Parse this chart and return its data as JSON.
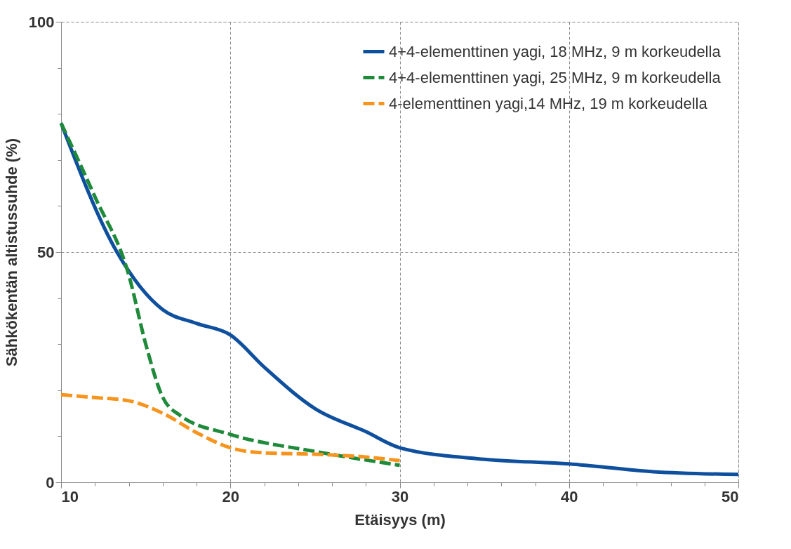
{
  "chart_data": {
    "type": "line",
    "xlabel": "Etäisyys (m)",
    "ylabel": "Sähkökentän altistussuhde (%)",
    "xlim": [
      10,
      50
    ],
    "ylim": [
      0,
      100
    ],
    "xticks": [
      10,
      {
        "value": 12,
        "label": null
      },
      {
        "value": 14,
        "label": null
      },
      {
        "value": 16,
        "label": null
      },
      {
        "value": 18,
        "label": null
      },
      20,
      {
        "value": 22,
        "label": null
      },
      {
        "value": 24,
        "label": null
      },
      {
        "value": 26,
        "label": null
      },
      {
        "value": 28,
        "label": null
      },
      30,
      {
        "value": 32,
        "label": null
      },
      {
        "value": 34,
        "label": null
      },
      {
        "value": 36,
        "label": null
      },
      {
        "value": 38,
        "label": null
      },
      40,
      {
        "value": 42,
        "label": null
      },
      {
        "value": 44,
        "label": null
      },
      {
        "value": 46,
        "label": null
      },
      {
        "value": 48,
        "label": null
      },
      50
    ],
    "yticks": [
      0,
      {
        "value": 10,
        "label": null
      },
      {
        "value": 20,
        "label": null
      },
      {
        "value": 30,
        "label": null
      },
      {
        "value": 40,
        "label": null
      },
      50,
      {
        "value": 60,
        "label": null
      },
      {
        "value": 70,
        "label": null
      },
      {
        "value": 80,
        "label": null
      },
      {
        "value": 90,
        "label": null
      },
      100
    ],
    "grid": true,
    "legend": "top right",
    "marker": "none",
    "series": [
      {
        "name": "4+4-elementtinen yagi, 18 MHz, 9 m korkeudella",
        "color": "#0e4f9e",
        "line_style": "solid",
        "x": [
          10,
          13.3,
          16,
          18,
          20,
          22,
          25,
          28,
          30,
          35,
          40,
          45,
          50
        ],
        "values": [
          78,
          50,
          37.5,
          34.5,
          32,
          25,
          16,
          11,
          7.5,
          5,
          4,
          2.3,
          1.7
        ]
      },
      {
        "name": "4+4-elementtinen yagi, 25 MHz, 9 m korkeudella",
        "color": "#1e8a3a",
        "line_style": "dashed",
        "x": [
          10,
          12,
          14,
          15,
          16,
          17,
          20,
          25,
          30
        ],
        "values": [
          78,
          62,
          45,
          30,
          18.5,
          14.6,
          10.4,
          6.7,
          3.7
        ]
      },
      {
        "name": "4-elementtinen yagi,14 MHz, 19 m korkeudella",
        "color": "#f7941d",
        "line_style": "dashed",
        "x": [
          10,
          12,
          14,
          16,
          18,
          20,
          22,
          25,
          28,
          30
        ],
        "values": [
          19,
          18.4,
          17.7,
          15,
          10.8,
          7.5,
          6.4,
          6.1,
          5.5,
          4.7
        ]
      }
    ]
  }
}
